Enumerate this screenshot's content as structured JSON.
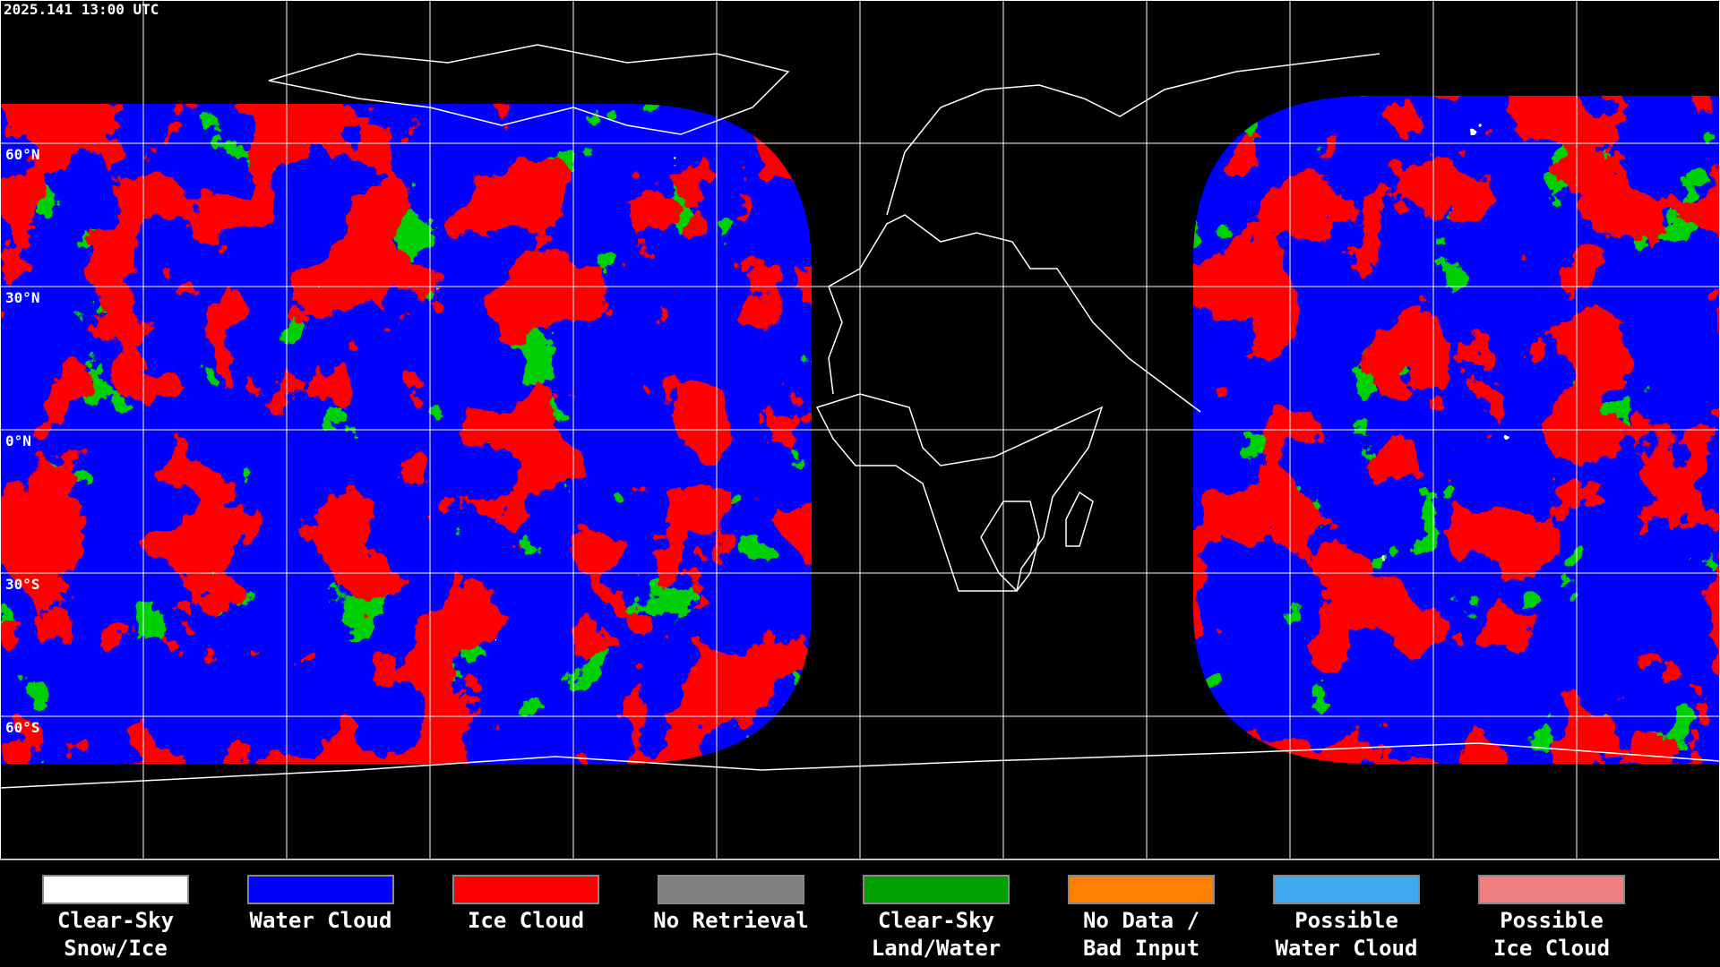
{
  "header": {
    "timestamp": "2025.141 13:00 UTC"
  },
  "map": {
    "latitude_labels": [
      "60°N",
      "30°N",
      "0°N",
      "30°S",
      "60°S"
    ]
  },
  "legend": {
    "items": [
      {
        "label_lines": [
          "Clear-Sky",
          "Snow/Ice"
        ],
        "color": "#ffffff"
      },
      {
        "label_lines": [
          "Water Cloud"
        ],
        "color": "#0000ff"
      },
      {
        "label_lines": [
          "Ice Cloud"
        ],
        "color": "#ff0000"
      },
      {
        "label_lines": [
          "No Retrieval"
        ],
        "color": "#808080"
      },
      {
        "label_lines": [
          "Clear-Sky",
          "Land/Water"
        ],
        "color": "#00a000"
      },
      {
        "label_lines": [
          "No Data /",
          "Bad Input"
        ],
        "color": "#ff8000"
      },
      {
        "label_lines": [
          "Possible",
          "Water Cloud"
        ],
        "color": "#40a8f0"
      },
      {
        "label_lines": [
          "Possible",
          "Ice Cloud"
        ],
        "color": "#f08080"
      }
    ]
  }
}
